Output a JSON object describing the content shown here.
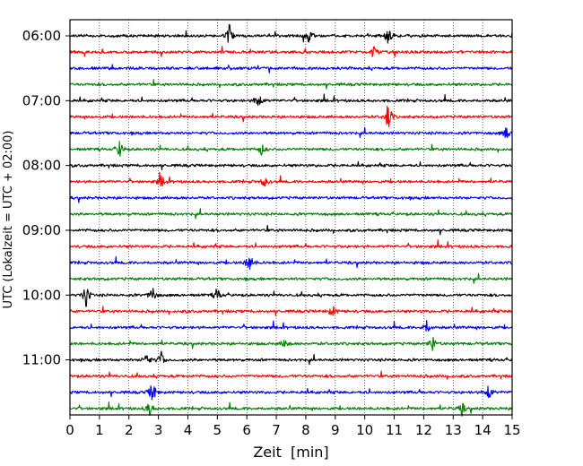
{
  "chart_data": {
    "type": "line",
    "title": "",
    "xlabel": "Zeit  [min]",
    "ylabel": "UTC (Lokalzeit = UTC + 02:00)",
    "xlim": [
      0,
      15
    ],
    "x_ticks": [
      "0",
      "1",
      "2",
      "3",
      "4",
      "5",
      "6",
      "7",
      "8",
      "9",
      "10",
      "11",
      "12",
      "13",
      "14",
      "15"
    ],
    "y_tick_labels": [
      "06:00",
      "07:00",
      "08:00",
      "09:00",
      "10:00",
      "11:00"
    ],
    "grid": "vertical dotted at each minute",
    "trace_interval_minutes": 15,
    "trace_start": "06:00",
    "trace_count": 24,
    "trace_colors": [
      "#000000",
      "#ff0000",
      "#0000ff",
      "#008000"
    ],
    "events": [
      {
        "trace": 0,
        "minute": 5.4,
        "amplitude": 0.9
      },
      {
        "trace": 0,
        "minute": 8.1,
        "amplitude": 0.5
      },
      {
        "trace": 0,
        "minute": 10.8,
        "amplitude": 0.6
      },
      {
        "trace": 1,
        "minute": 10.3,
        "amplitude": 0.5
      },
      {
        "trace": 4,
        "minute": 6.4,
        "amplitude": 0.7
      },
      {
        "trace": 5,
        "minute": 10.8,
        "amplitude": 1.1
      },
      {
        "trace": 6,
        "minute": 14.8,
        "amplitude": 0.5
      },
      {
        "trace": 7,
        "minute": 1.7,
        "amplitude": 0.6
      },
      {
        "trace": 7,
        "minute": 6.5,
        "amplitude": 0.4
      },
      {
        "trace": 9,
        "minute": 3.1,
        "amplitude": 0.4
      },
      {
        "trace": 9,
        "minute": 6.6,
        "amplitude": 0.4
      },
      {
        "trace": 14,
        "minute": 6.1,
        "amplitude": 0.9
      },
      {
        "trace": 16,
        "minute": 0.55,
        "amplitude": 0.8
      },
      {
        "trace": 16,
        "minute": 2.8,
        "amplitude": 0.6
      },
      {
        "trace": 16,
        "minute": 5.0,
        "amplitude": 0.5
      },
      {
        "trace": 17,
        "minute": 8.9,
        "amplitude": 0.4
      },
      {
        "trace": 18,
        "minute": 12.1,
        "amplitude": 0.5
      },
      {
        "trace": 19,
        "minute": 7.3,
        "amplitude": 0.4
      },
      {
        "trace": 19,
        "minute": 12.3,
        "amplitude": 0.5
      },
      {
        "trace": 20,
        "minute": 2.6,
        "amplitude": 0.5
      },
      {
        "trace": 20,
        "minute": 3.1,
        "amplitude": 0.5
      },
      {
        "trace": 22,
        "minute": 2.8,
        "amplitude": 0.8
      },
      {
        "trace": 22,
        "minute": 14.2,
        "amplitude": 0.7
      },
      {
        "trace": 23,
        "minute": 2.7,
        "amplitude": 0.5
      },
      {
        "trace": 23,
        "minute": 13.3,
        "amplitude": 0.4
      }
    ]
  }
}
